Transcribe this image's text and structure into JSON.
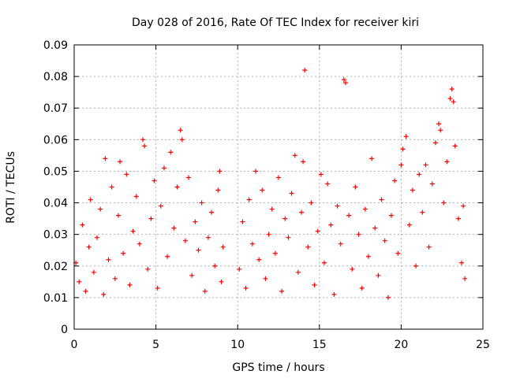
{
  "chart_data": {
    "type": "scatter",
    "title": "Day 028 of 2016, Rate Of TEC Index for receiver kiri",
    "xlabel": "GPS time / hours",
    "ylabel": "ROTI / TECUs",
    "xlim": [
      0,
      25
    ],
    "ylim": [
      0,
      0.09
    ],
    "x_ticks": [
      0,
      5,
      10,
      15,
      20,
      25
    ],
    "x_tick_labels": [
      "0",
      "5",
      "10",
      "15",
      "20",
      "25"
    ],
    "y_ticks": [
      0,
      0.01,
      0.02,
      0.03,
      0.04,
      0.05,
      0.06,
      0.07,
      0.08,
      0.09
    ],
    "y_tick_labels": [
      "0",
      "0.01",
      "0.02",
      "0.03",
      "0.04",
      "0.05",
      "0.06",
      "0.07",
      "0.08",
      "0.09"
    ],
    "grid": true,
    "marker": "+",
    "series": [
      {
        "name": "ROTI",
        "color": "#ff0000",
        "points": [
          [
            0.1,
            0.021
          ],
          [
            0.3,
            0.015
          ],
          [
            0.5,
            0.033
          ],
          [
            0.7,
            0.012
          ],
          [
            0.9,
            0.026
          ],
          [
            1.0,
            0.041
          ],
          [
            1.2,
            0.018
          ],
          [
            1.4,
            0.029
          ],
          [
            1.6,
            0.038
          ],
          [
            1.8,
            0.011
          ],
          [
            1.9,
            0.054
          ],
          [
            2.1,
            0.022
          ],
          [
            2.3,
            0.045
          ],
          [
            2.5,
            0.016
          ],
          [
            2.7,
            0.036
          ],
          [
            2.8,
            0.053
          ],
          [
            3.0,
            0.024
          ],
          [
            3.2,
            0.049
          ],
          [
            3.4,
            0.014
          ],
          [
            3.6,
            0.031
          ],
          [
            3.8,
            0.042
          ],
          [
            4.0,
            0.027
          ],
          [
            4.2,
            0.06
          ],
          [
            4.3,
            0.058
          ],
          [
            4.5,
            0.019
          ],
          [
            4.7,
            0.035
          ],
          [
            4.9,
            0.047
          ],
          [
            5.1,
            0.013
          ],
          [
            5.3,
            0.039
          ],
          [
            5.5,
            0.051
          ],
          [
            5.7,
            0.023
          ],
          [
            5.9,
            0.056
          ],
          [
            6.1,
            0.032
          ],
          [
            6.3,
            0.045
          ],
          [
            6.5,
            0.063
          ],
          [
            6.6,
            0.06
          ],
          [
            6.8,
            0.028
          ],
          [
            7.0,
            0.048
          ],
          [
            7.2,
            0.017
          ],
          [
            7.4,
            0.034
          ],
          [
            7.6,
            0.025
          ],
          [
            7.8,
            0.04
          ],
          [
            8.0,
            0.012
          ],
          [
            8.2,
            0.029
          ],
          [
            8.4,
            0.037
          ],
          [
            8.6,
            0.02
          ],
          [
            8.8,
            0.044
          ],
          [
            8.9,
            0.05
          ],
          [
            9.0,
            0.015
          ],
          [
            9.1,
            0.026
          ],
          [
            10.1,
            0.019
          ],
          [
            10.3,
            0.034
          ],
          [
            10.5,
            0.013
          ],
          [
            10.7,
            0.041
          ],
          [
            10.9,
            0.027
          ],
          [
            11.1,
            0.05
          ],
          [
            11.3,
            0.022
          ],
          [
            11.5,
            0.044
          ],
          [
            11.7,
            0.016
          ],
          [
            11.9,
            0.03
          ],
          [
            12.1,
            0.038
          ],
          [
            12.3,
            0.024
          ],
          [
            12.5,
            0.048
          ],
          [
            12.7,
            0.012
          ],
          [
            12.9,
            0.035
          ],
          [
            13.1,
            0.029
          ],
          [
            13.3,
            0.043
          ],
          [
            13.5,
            0.055
          ],
          [
            13.7,
            0.018
          ],
          [
            13.9,
            0.037
          ],
          [
            14.0,
            0.053
          ],
          [
            14.1,
            0.082
          ],
          [
            14.3,
            0.026
          ],
          [
            14.5,
            0.04
          ],
          [
            14.7,
            0.014
          ],
          [
            14.9,
            0.031
          ],
          [
            15.1,
            0.049
          ],
          [
            15.3,
            0.021
          ],
          [
            15.5,
            0.046
          ],
          [
            15.7,
            0.033
          ],
          [
            15.9,
            0.011
          ],
          [
            16.1,
            0.039
          ],
          [
            16.3,
            0.027
          ],
          [
            16.5,
            0.079
          ],
          [
            16.6,
            0.078
          ],
          [
            16.8,
            0.036
          ],
          [
            17.0,
            0.019
          ],
          [
            17.2,
            0.045
          ],
          [
            17.4,
            0.03
          ],
          [
            17.6,
            0.013
          ],
          [
            17.8,
            0.038
          ],
          [
            18.0,
            0.023
          ],
          [
            18.2,
            0.054
          ],
          [
            18.4,
            0.032
          ],
          [
            18.6,
            0.017
          ],
          [
            18.8,
            0.041
          ],
          [
            19.0,
            0.028
          ],
          [
            19.2,
            0.01
          ],
          [
            19.4,
            0.036
          ],
          [
            19.6,
            0.047
          ],
          [
            19.8,
            0.024
          ],
          [
            20.0,
            0.052
          ],
          [
            20.1,
            0.057
          ],
          [
            20.3,
            0.061
          ],
          [
            20.5,
            0.033
          ],
          [
            20.7,
            0.044
          ],
          [
            20.9,
            0.02
          ],
          [
            21.1,
            0.049
          ],
          [
            21.3,
            0.037
          ],
          [
            21.5,
            0.052
          ],
          [
            21.7,
            0.026
          ],
          [
            21.9,
            0.046
          ],
          [
            22.1,
            0.059
          ],
          [
            22.3,
            0.065
          ],
          [
            22.4,
            0.063
          ],
          [
            22.6,
            0.04
          ],
          [
            22.8,
            0.053
          ],
          [
            23.0,
            0.073
          ],
          [
            23.1,
            0.076
          ],
          [
            23.2,
            0.072
          ],
          [
            23.3,
            0.058
          ],
          [
            23.5,
            0.035
          ],
          [
            23.7,
            0.021
          ],
          [
            23.8,
            0.039
          ],
          [
            23.9,
            0.016
          ]
        ]
      }
    ]
  }
}
